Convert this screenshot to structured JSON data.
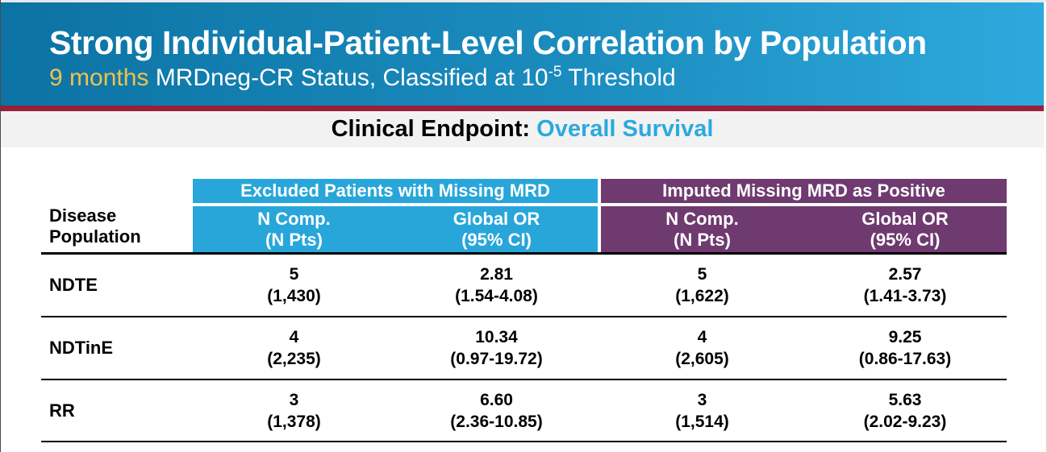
{
  "banner": {
    "title": "Strong Individual-Patient-Level Correlation by Population",
    "subtitle_highlight": "9 months",
    "subtitle_mid": " MRDneg-CR Status, Classified at 10",
    "subtitle_superscript": "-5",
    "subtitle_end": " Threshold",
    "colors": {
      "gradient_left": "#0c73a4",
      "gradient_right": "#2ea9dd",
      "highlight_yellow": "#efc24d",
      "divider_maroon": "#97203a"
    }
  },
  "endpoint": {
    "label": "Clinical Endpoint: ",
    "value": "Overall Survival",
    "value_color": "#2ba9df",
    "band_color": "#f2f2f2"
  },
  "table": {
    "row_header": {
      "line1": "Disease",
      "line2": "Population"
    },
    "groups": [
      {
        "label": "Excluded Patients with Missing MRD",
        "color": "#28a6d9"
      },
      {
        "label": "Imputed Missing MRD as Positive",
        "color": "#6f3a70"
      }
    ],
    "subheaders": {
      "n_comp": {
        "line1": "N Comp.",
        "line2": "(N Pts)"
      },
      "global_or": {
        "line1": "Global OR",
        "line2": "(95% CI)"
      }
    },
    "rows": [
      {
        "label": "NDTE",
        "cells": [
          {
            "line1": "5",
            "line2": "(1,430)"
          },
          {
            "line1": "2.81",
            "line2": "(1.54-4.08)"
          },
          {
            "line1": "5",
            "line2": "(1,622)"
          },
          {
            "line1": "2.57",
            "line2": "(1.41-3.73)"
          }
        ]
      },
      {
        "label": "NDTinE",
        "cells": [
          {
            "line1": "4",
            "line2": "(2,235)"
          },
          {
            "line1": "10.34",
            "line2": "(0.97-19.72)"
          },
          {
            "line1": "4",
            "line2": "(2,605)"
          },
          {
            "line1": "9.25",
            "line2": "(0.86-17.63)"
          }
        ]
      },
      {
        "label": "RR",
        "cells": [
          {
            "line1": "3",
            "line2": "(1,378)"
          },
          {
            "line1": "6.60",
            "line2": "(2.36-10.85)"
          },
          {
            "line1": "3",
            "line2": "(1,514)"
          },
          {
            "line1": "5.63",
            "line2": "(2.02-9.23)"
          }
        ]
      }
    ]
  }
}
